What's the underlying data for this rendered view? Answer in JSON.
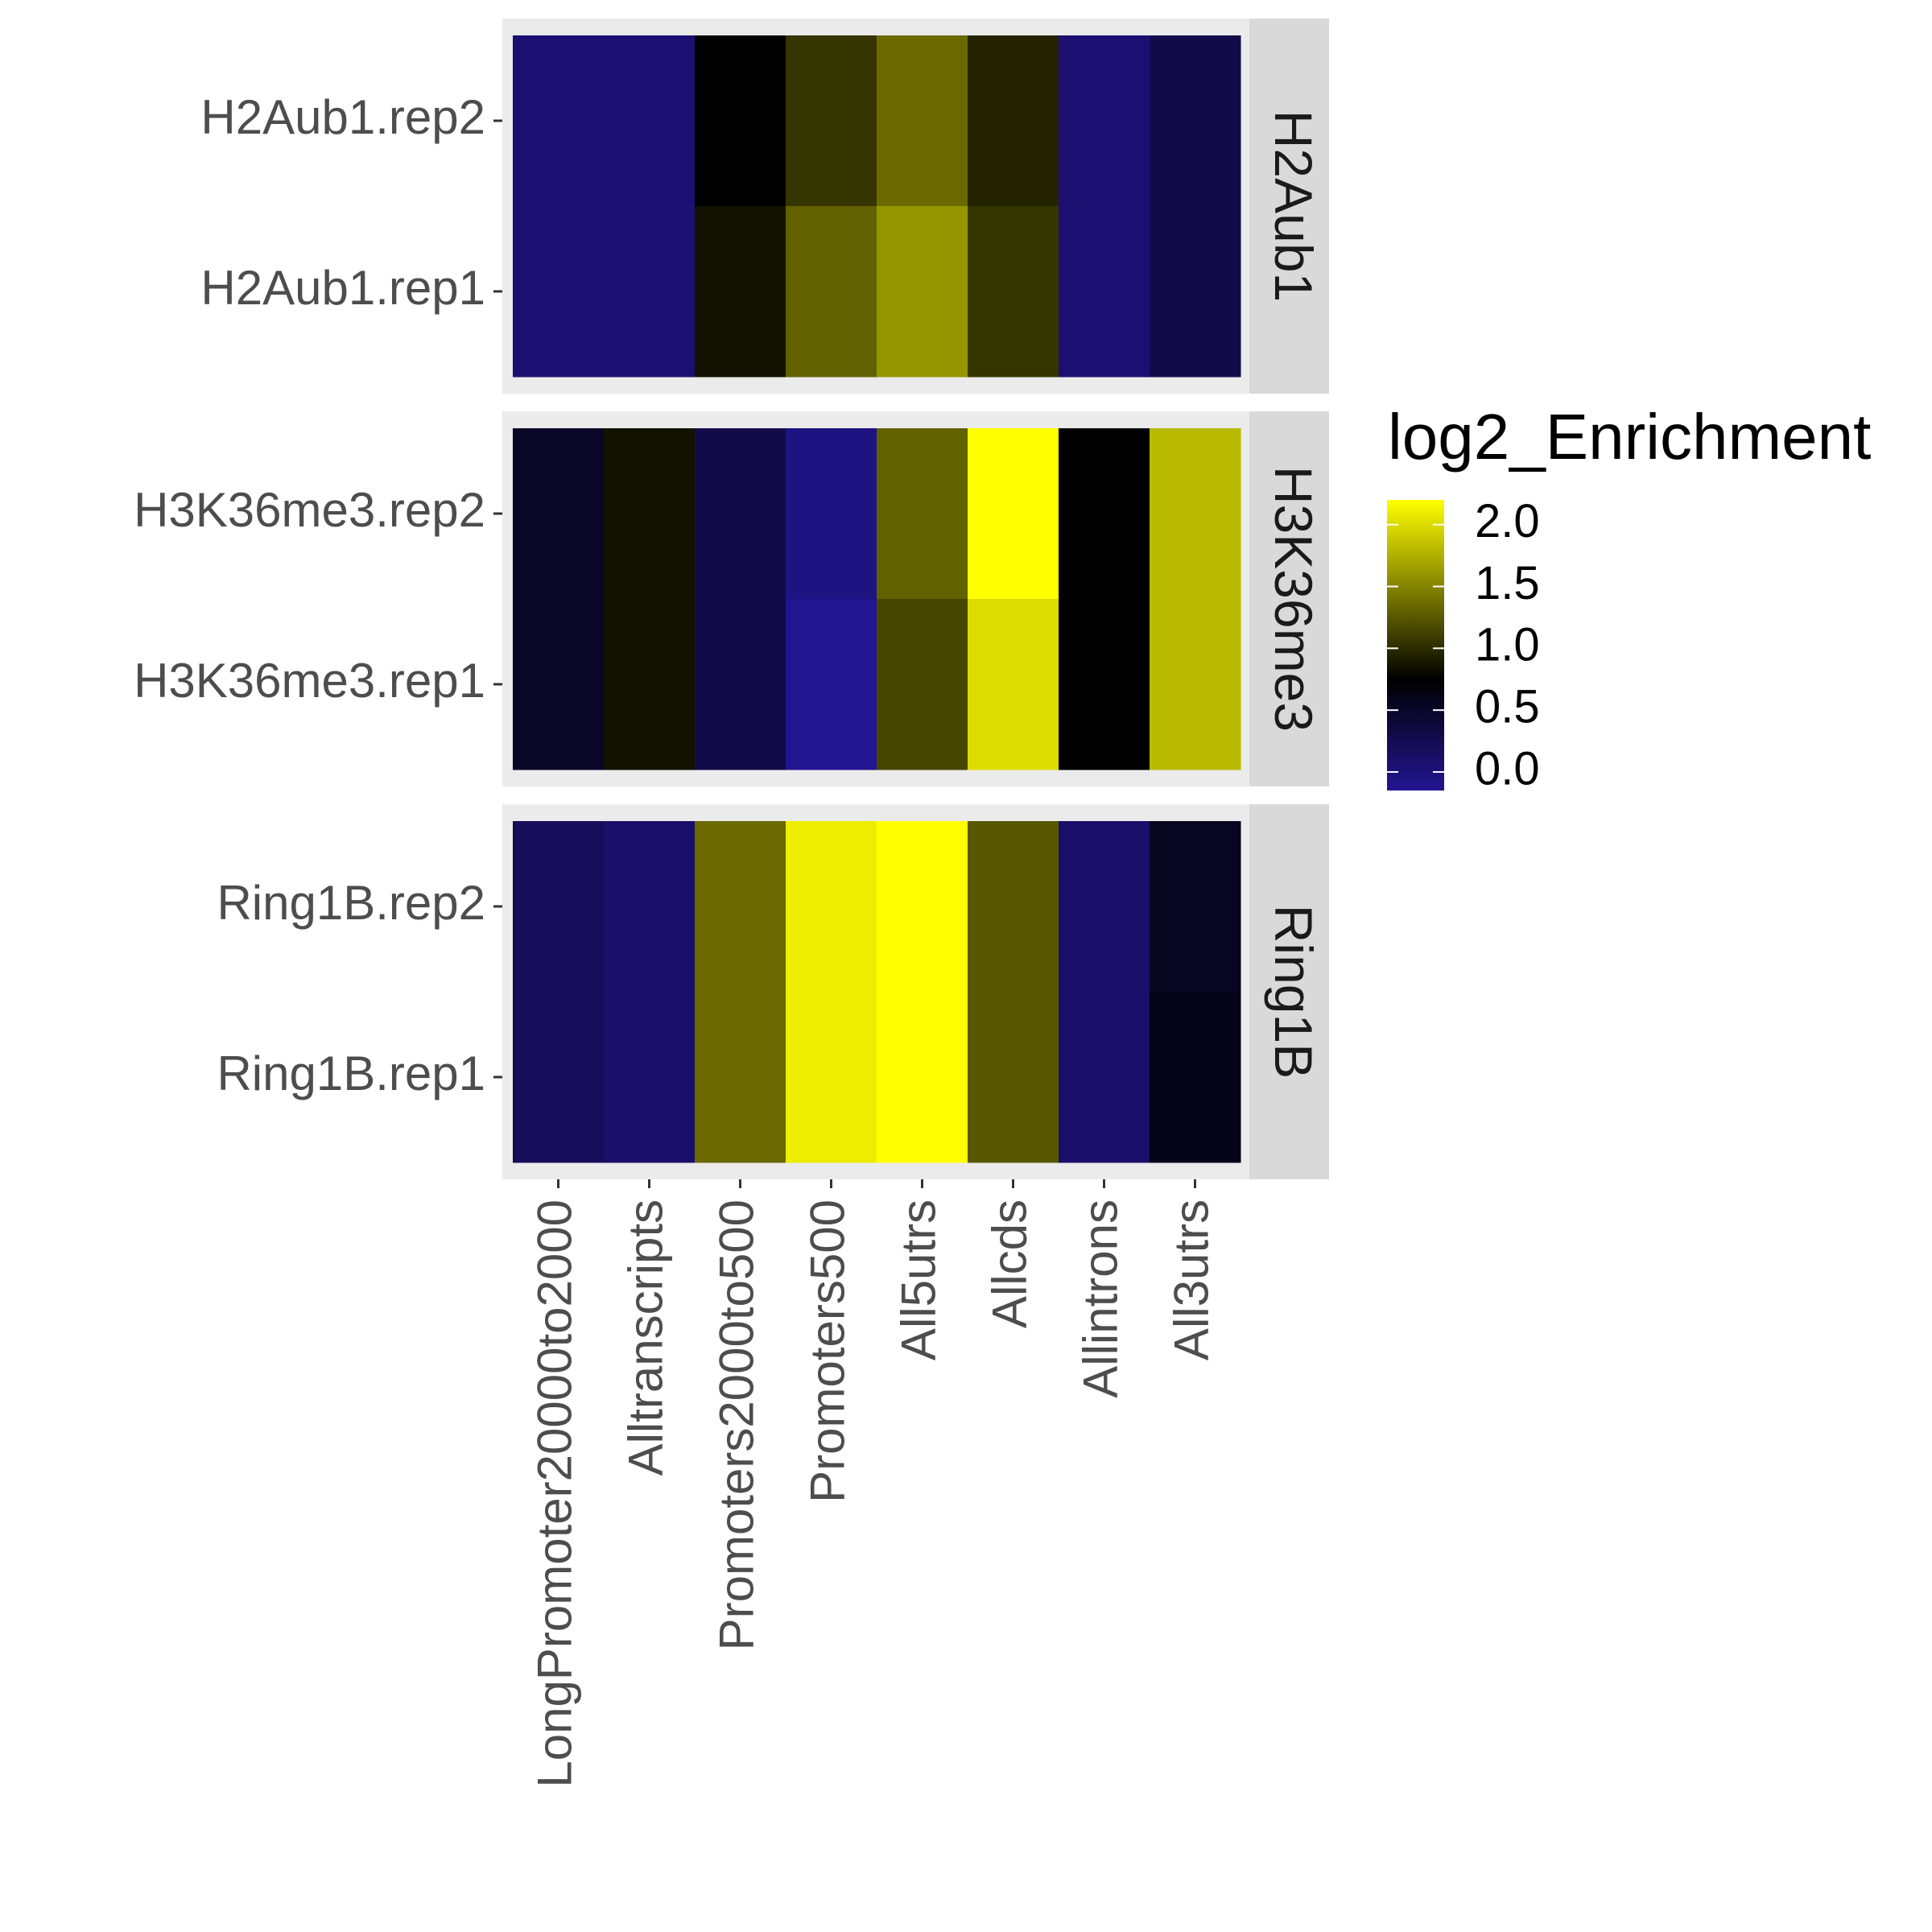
{
  "chart_data": {
    "type": "heatmap",
    "columns": [
      "LongPromoter20000to2000",
      "Alltranscripts",
      "Promoters2000to500",
      "Promoters500",
      "All5utrs",
      "Allcds",
      "Allintrons",
      "All3utrs"
    ],
    "facets": [
      {
        "name": "H2Aub1",
        "rows": [
          {
            "label": "H2Aub1.rep2",
            "values": [
              0.05,
              0.05,
              0.75,
              1.05,
              1.35,
              0.95,
              0.05,
              0.3
            ]
          },
          {
            "label": "H2Aub1.rep1",
            "values": [
              0.05,
              0.05,
              0.85,
              1.3,
              1.6,
              1.05,
              0.05,
              0.3
            ]
          }
        ]
      },
      {
        "name": "H3K36me3",
        "rows": [
          {
            "label": "H3K36me3.rep2",
            "values": [
              0.5,
              0.85,
              0.3,
              -0.05,
              1.3,
              2.2,
              0.75,
              1.8
            ]
          },
          {
            "label": "H3K36me3.rep1",
            "values": [
              0.5,
              0.85,
              0.3,
              -0.15,
              1.15,
              2.0,
              0.75,
              1.8
            ]
          }
        ]
      },
      {
        "name": "Ring1B",
        "rows": [
          {
            "label": "Ring1B.rep2",
            "values": [
              0.2,
              0.1,
              1.35,
              2.1,
              2.2,
              1.25,
              0.1,
              0.55
            ]
          },
          {
            "label": "Ring1B.rep1",
            "values": [
              0.2,
              0.1,
              1.35,
              2.1,
              2.2,
              1.25,
              0.1,
              0.6
            ]
          }
        ]
      }
    ],
    "legend": {
      "title": "log2_Enrichment",
      "ticks": [
        "2.0",
        "1.5",
        "1.0",
        "0.5",
        "0.0"
      ],
      "tick_values": [
        2.0,
        1.5,
        1.0,
        0.5,
        0.0
      ],
      "range": [
        -0.15,
        2.2
      ],
      "colors": {
        "low": "#231591",
        "mid": "#000000",
        "high": "#ffff00"
      },
      "midpoint": 0.75,
      "placement": "right"
    },
    "colors": {
      "panel": "#ebebeb",
      "strip": "#d9d9d9",
      "axis_text": "#4d4d4d",
      "tick": "#333333"
    }
  }
}
